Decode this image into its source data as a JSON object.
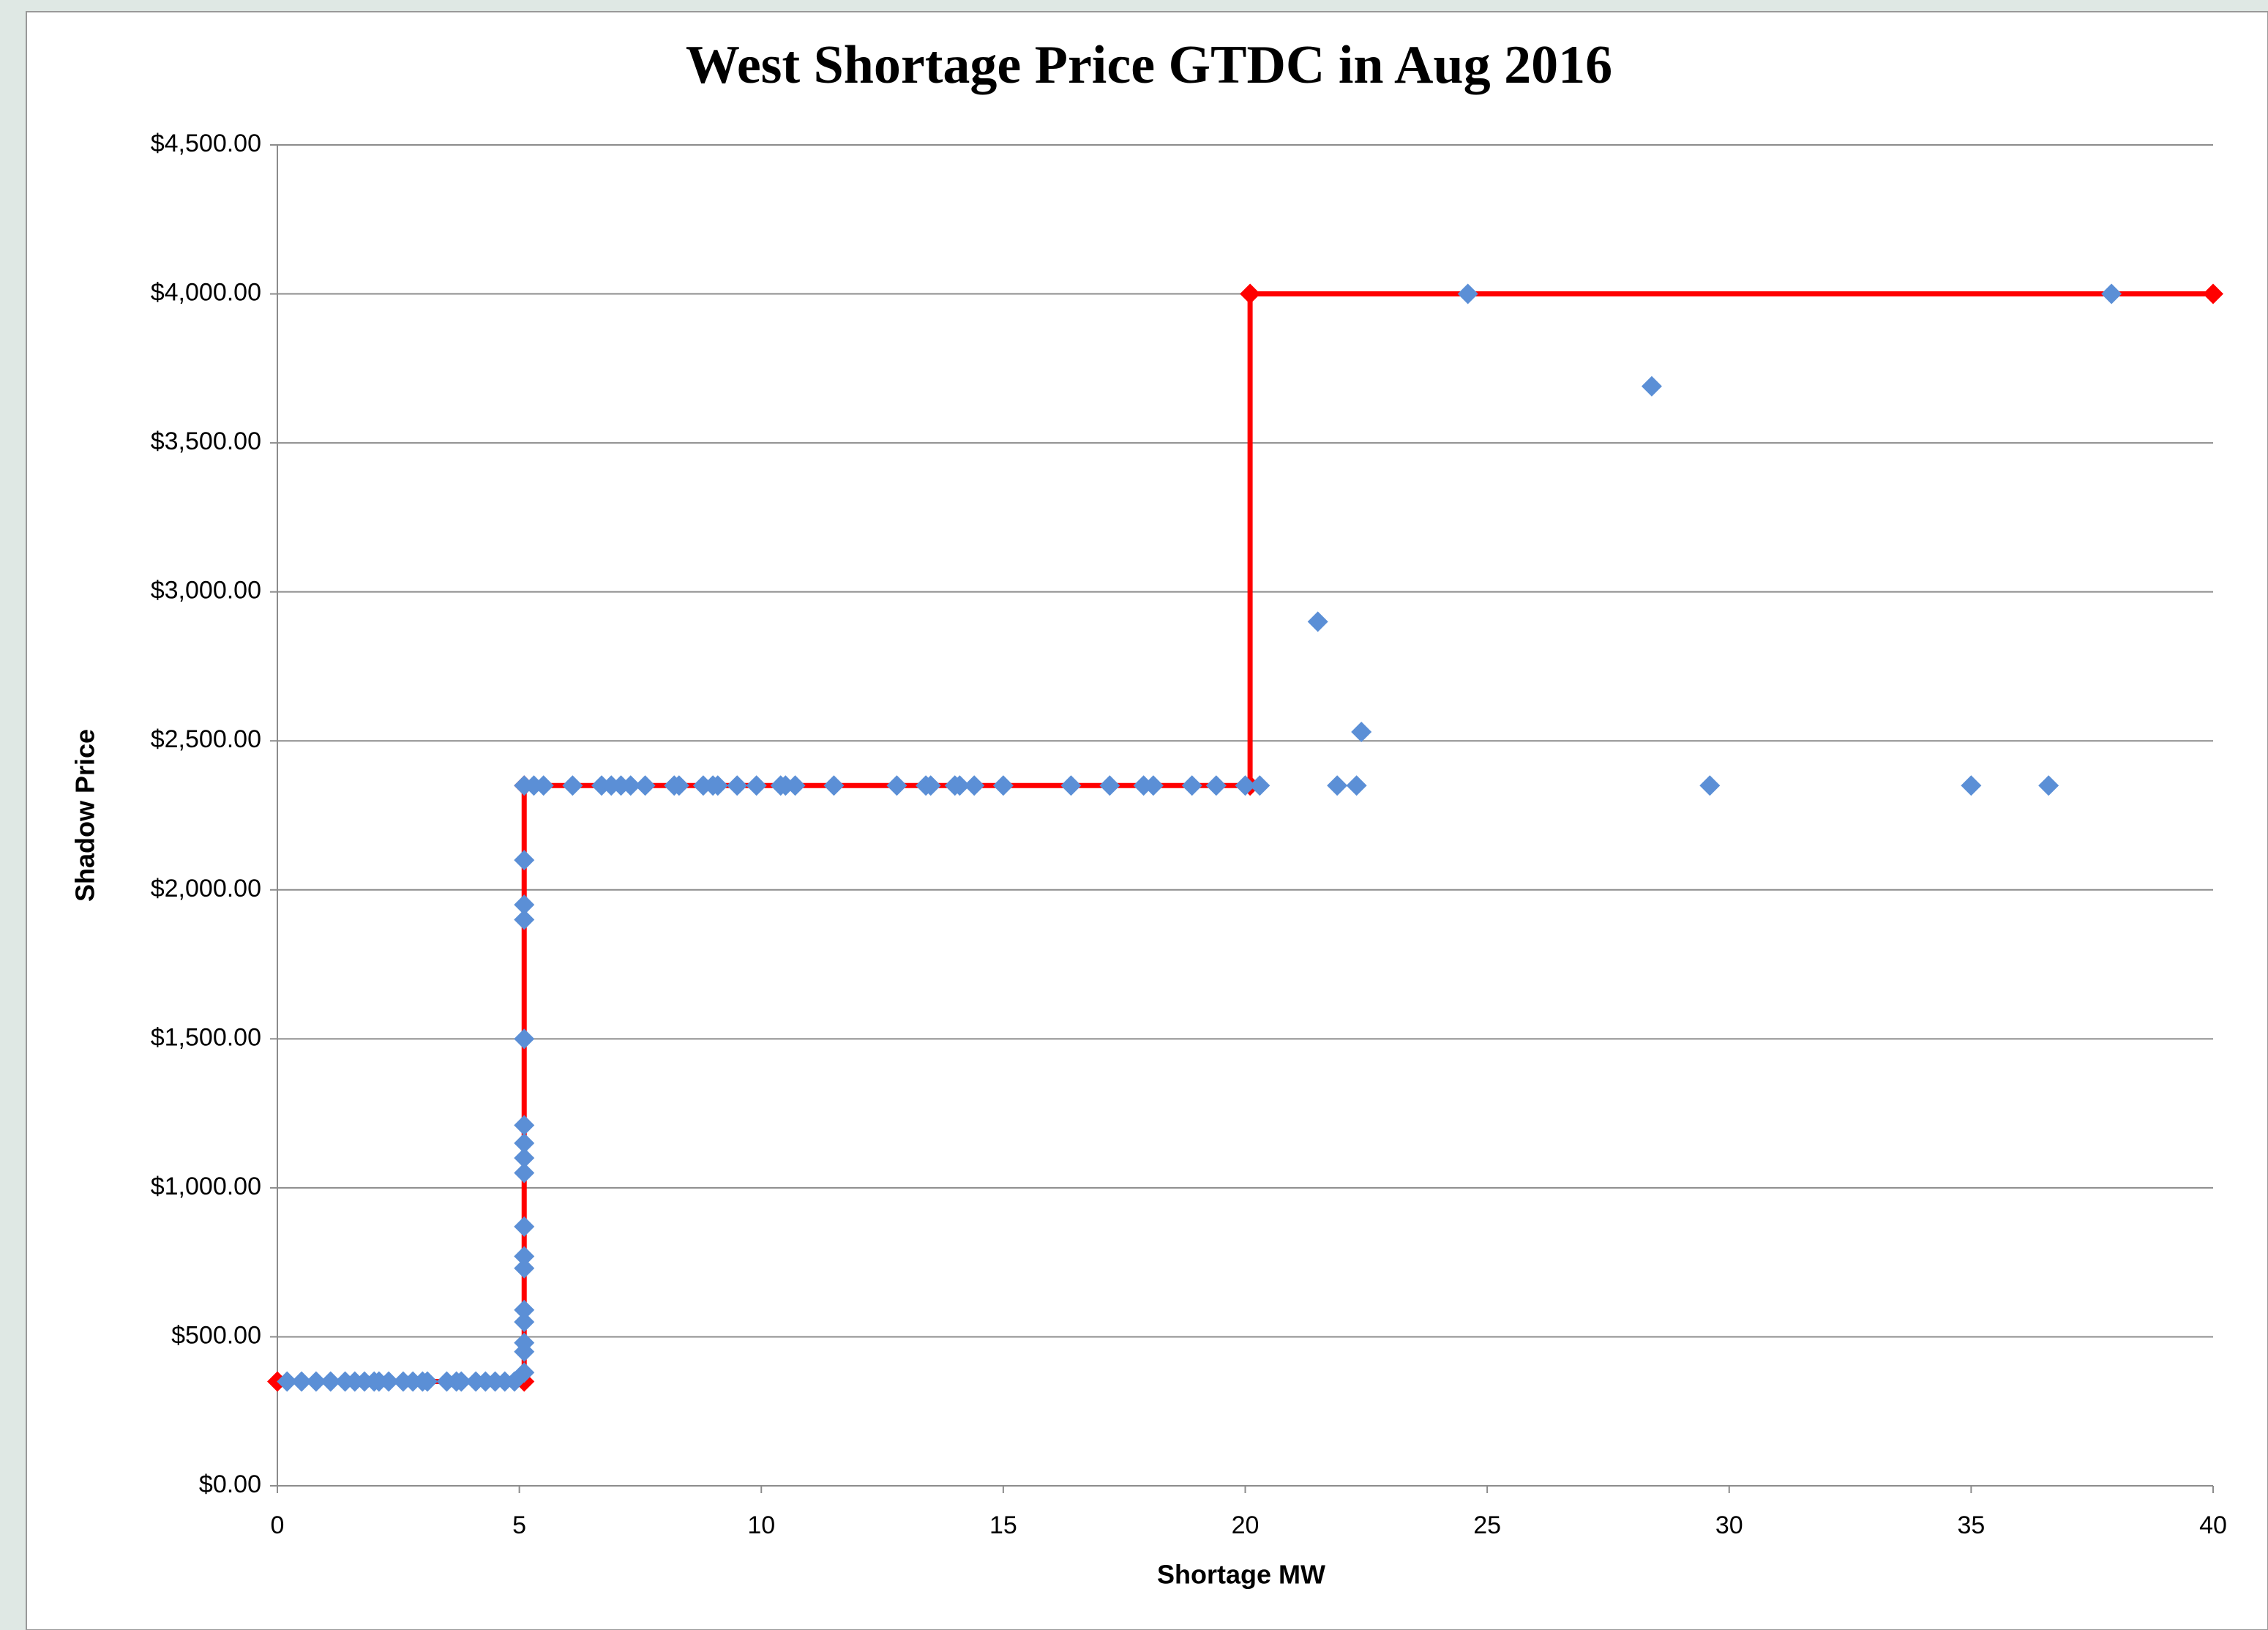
{
  "chart_data": {
    "type": "scatter",
    "title": "West Shortage Price GTDC in Aug 2016",
    "x_label": "Shortage MW",
    "y_label": "Shadow Price",
    "xlim": [
      0,
      40
    ],
    "xticks": [
      0,
      5,
      10,
      15,
      20,
      25,
      30,
      35,
      40
    ],
    "ylim": [
      0,
      4500
    ],
    "yticks": [
      {
        "value": 0,
        "label": "$0.00"
      },
      {
        "value": 500,
        "label": "$500.00"
      },
      {
        "value": 1000,
        "label": "$1,000.00"
      },
      {
        "value": 1500,
        "label": "$1,500.00"
      },
      {
        "value": 2000,
        "label": "$2,000.00"
      },
      {
        "value": 2500,
        "label": "$2,500.00"
      },
      {
        "value": 3000,
        "label": "$3,000.00"
      },
      {
        "value": 3500,
        "label": "$3,500.00"
      },
      {
        "value": 4000,
        "label": "$4,000.00"
      },
      {
        "value": 4500,
        "label": "$4,500.00"
      }
    ],
    "grid": true,
    "series": [
      {
        "color": "#ff0000",
        "line": true,
        "x": [
          0,
          5.1,
          5.1,
          20.1,
          20.1,
          40
        ],
        "values": [
          350,
          350,
          2350,
          2350,
          4000,
          4000
        ]
      },
      {
        "color": "#5b8fd6",
        "line": false,
        "x": [
          0.2,
          0.5,
          0.8,
          1.1,
          1.4,
          1.6,
          1.8,
          2.0,
          2.1,
          2.3,
          2.6,
          2.8,
          3.0,
          3.1,
          3.5,
          3.7,
          3.8,
          4.1,
          4.3,
          4.5,
          4.7,
          4.9,
          5.1,
          5.1,
          5.1,
          5.1,
          5.1,
          5.1,
          5.1,
          5.1,
          5.1,
          5.1,
          5.1,
          5.1,
          5.1,
          5.1,
          5.1,
          5.1,
          5.1,
          5.3,
          5.5,
          6.1,
          6.7,
          6.9,
          7.1,
          7.3,
          7.6,
          8.2,
          8.3,
          8.8,
          9.0,
          9.1,
          9.5,
          9.9,
          10.4,
          10.5,
          10.7,
          11.5,
          12.8,
          13.4,
          13.5,
          14.0,
          14.1,
          14.4,
          15.0,
          16.4,
          17.2,
          17.9,
          18.1,
          18.9,
          19.4,
          20.0,
          20.3,
          21.9,
          22.3,
          29.6,
          35.0,
          36.6,
          21.5,
          22.4,
          24.6,
          28.4,
          37.9
        ],
        "values": [
          350,
          350,
          350,
          350,
          350,
          350,
          350,
          350,
          350,
          350,
          350,
          350,
          350,
          350,
          350,
          350,
          350,
          350,
          350,
          350,
          350,
          350,
          380,
          450,
          480,
          550,
          590,
          730,
          770,
          870,
          1050,
          1100,
          1150,
          1210,
          1500,
          1900,
          1950,
          2100,
          2350,
          2350,
          2350,
          2350,
          2350,
          2350,
          2350,
          2350,
          2350,
          2350,
          2350,
          2350,
          2350,
          2350,
          2350,
          2350,
          2350,
          2350,
          2350,
          2350,
          2350,
          2350,
          2350,
          2350,
          2350,
          2350,
          2350,
          2350,
          2350,
          2350,
          2350,
          2350,
          2350,
          2350,
          2350,
          2350,
          2350,
          2350,
          2350,
          2350,
          2900,
          2530,
          4000,
          3690,
          4000
        ]
      }
    ]
  }
}
